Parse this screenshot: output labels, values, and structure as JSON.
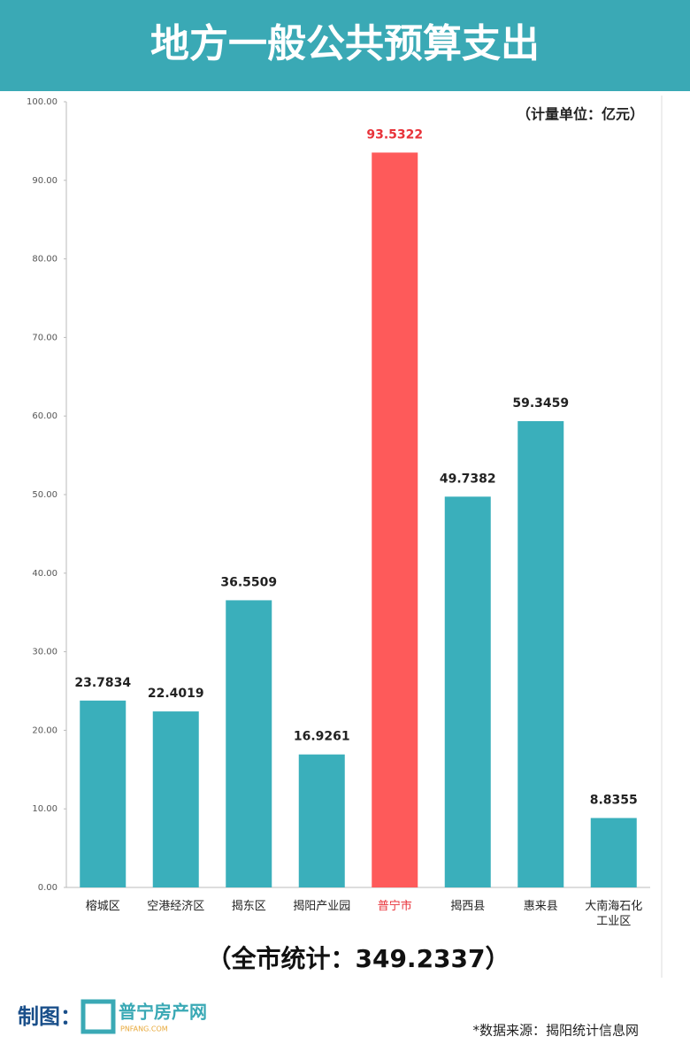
{
  "chart_data": {
    "type": "bar",
    "title": "地方一般公共预算支出",
    "unit_note": "（计量单位：亿元）",
    "total_note": "（全市统计：349.2337）",
    "categories": [
      "榕城区",
      "空港经济区",
      "揭东区",
      "揭阳产业园",
      "普宁市",
      "揭西县",
      "惠来县",
      "大南海石化工业区"
    ],
    "values": [
      23.7834,
      22.4019,
      36.5509,
      16.9261,
      93.5322,
      49.7382,
      59.3459,
      8.8355
    ],
    "colors": [
      "#3aafbb",
      "#3aafbb",
      "#3aafbb",
      "#3aafbb",
      "#fe5a5a",
      "#3aafbb",
      "#3aafbb",
      "#3aafbb"
    ],
    "ylim": [
      0,
      100
    ],
    "yticks": [
      {
        "value": 0,
        "label": "0.00"
      },
      {
        "value": 10,
        "label": "10.00"
      },
      {
        "value": 20,
        "label": "20.00"
      },
      {
        "value": 30,
        "label": "30.00"
      },
      {
        "value": 40,
        "label": "40.00"
      },
      {
        "value": 50,
        "label": "50.00"
      },
      {
        "value": 60,
        "label": "60.00"
      },
      {
        "value": 70,
        "label": "70.00"
      },
      {
        "value": 80,
        "label": "80.00"
      },
      {
        "value": 90,
        "label": "90.00"
      },
      {
        "value": 100,
        "label": "100.00"
      }
    ],
    "grid": false
  },
  "footer": {
    "made_by": "制图：",
    "logo_name": "普宁房产网",
    "logo_site": "PNFANG.COM",
    "source": "*数据来源：揭阳统计信息网"
  }
}
